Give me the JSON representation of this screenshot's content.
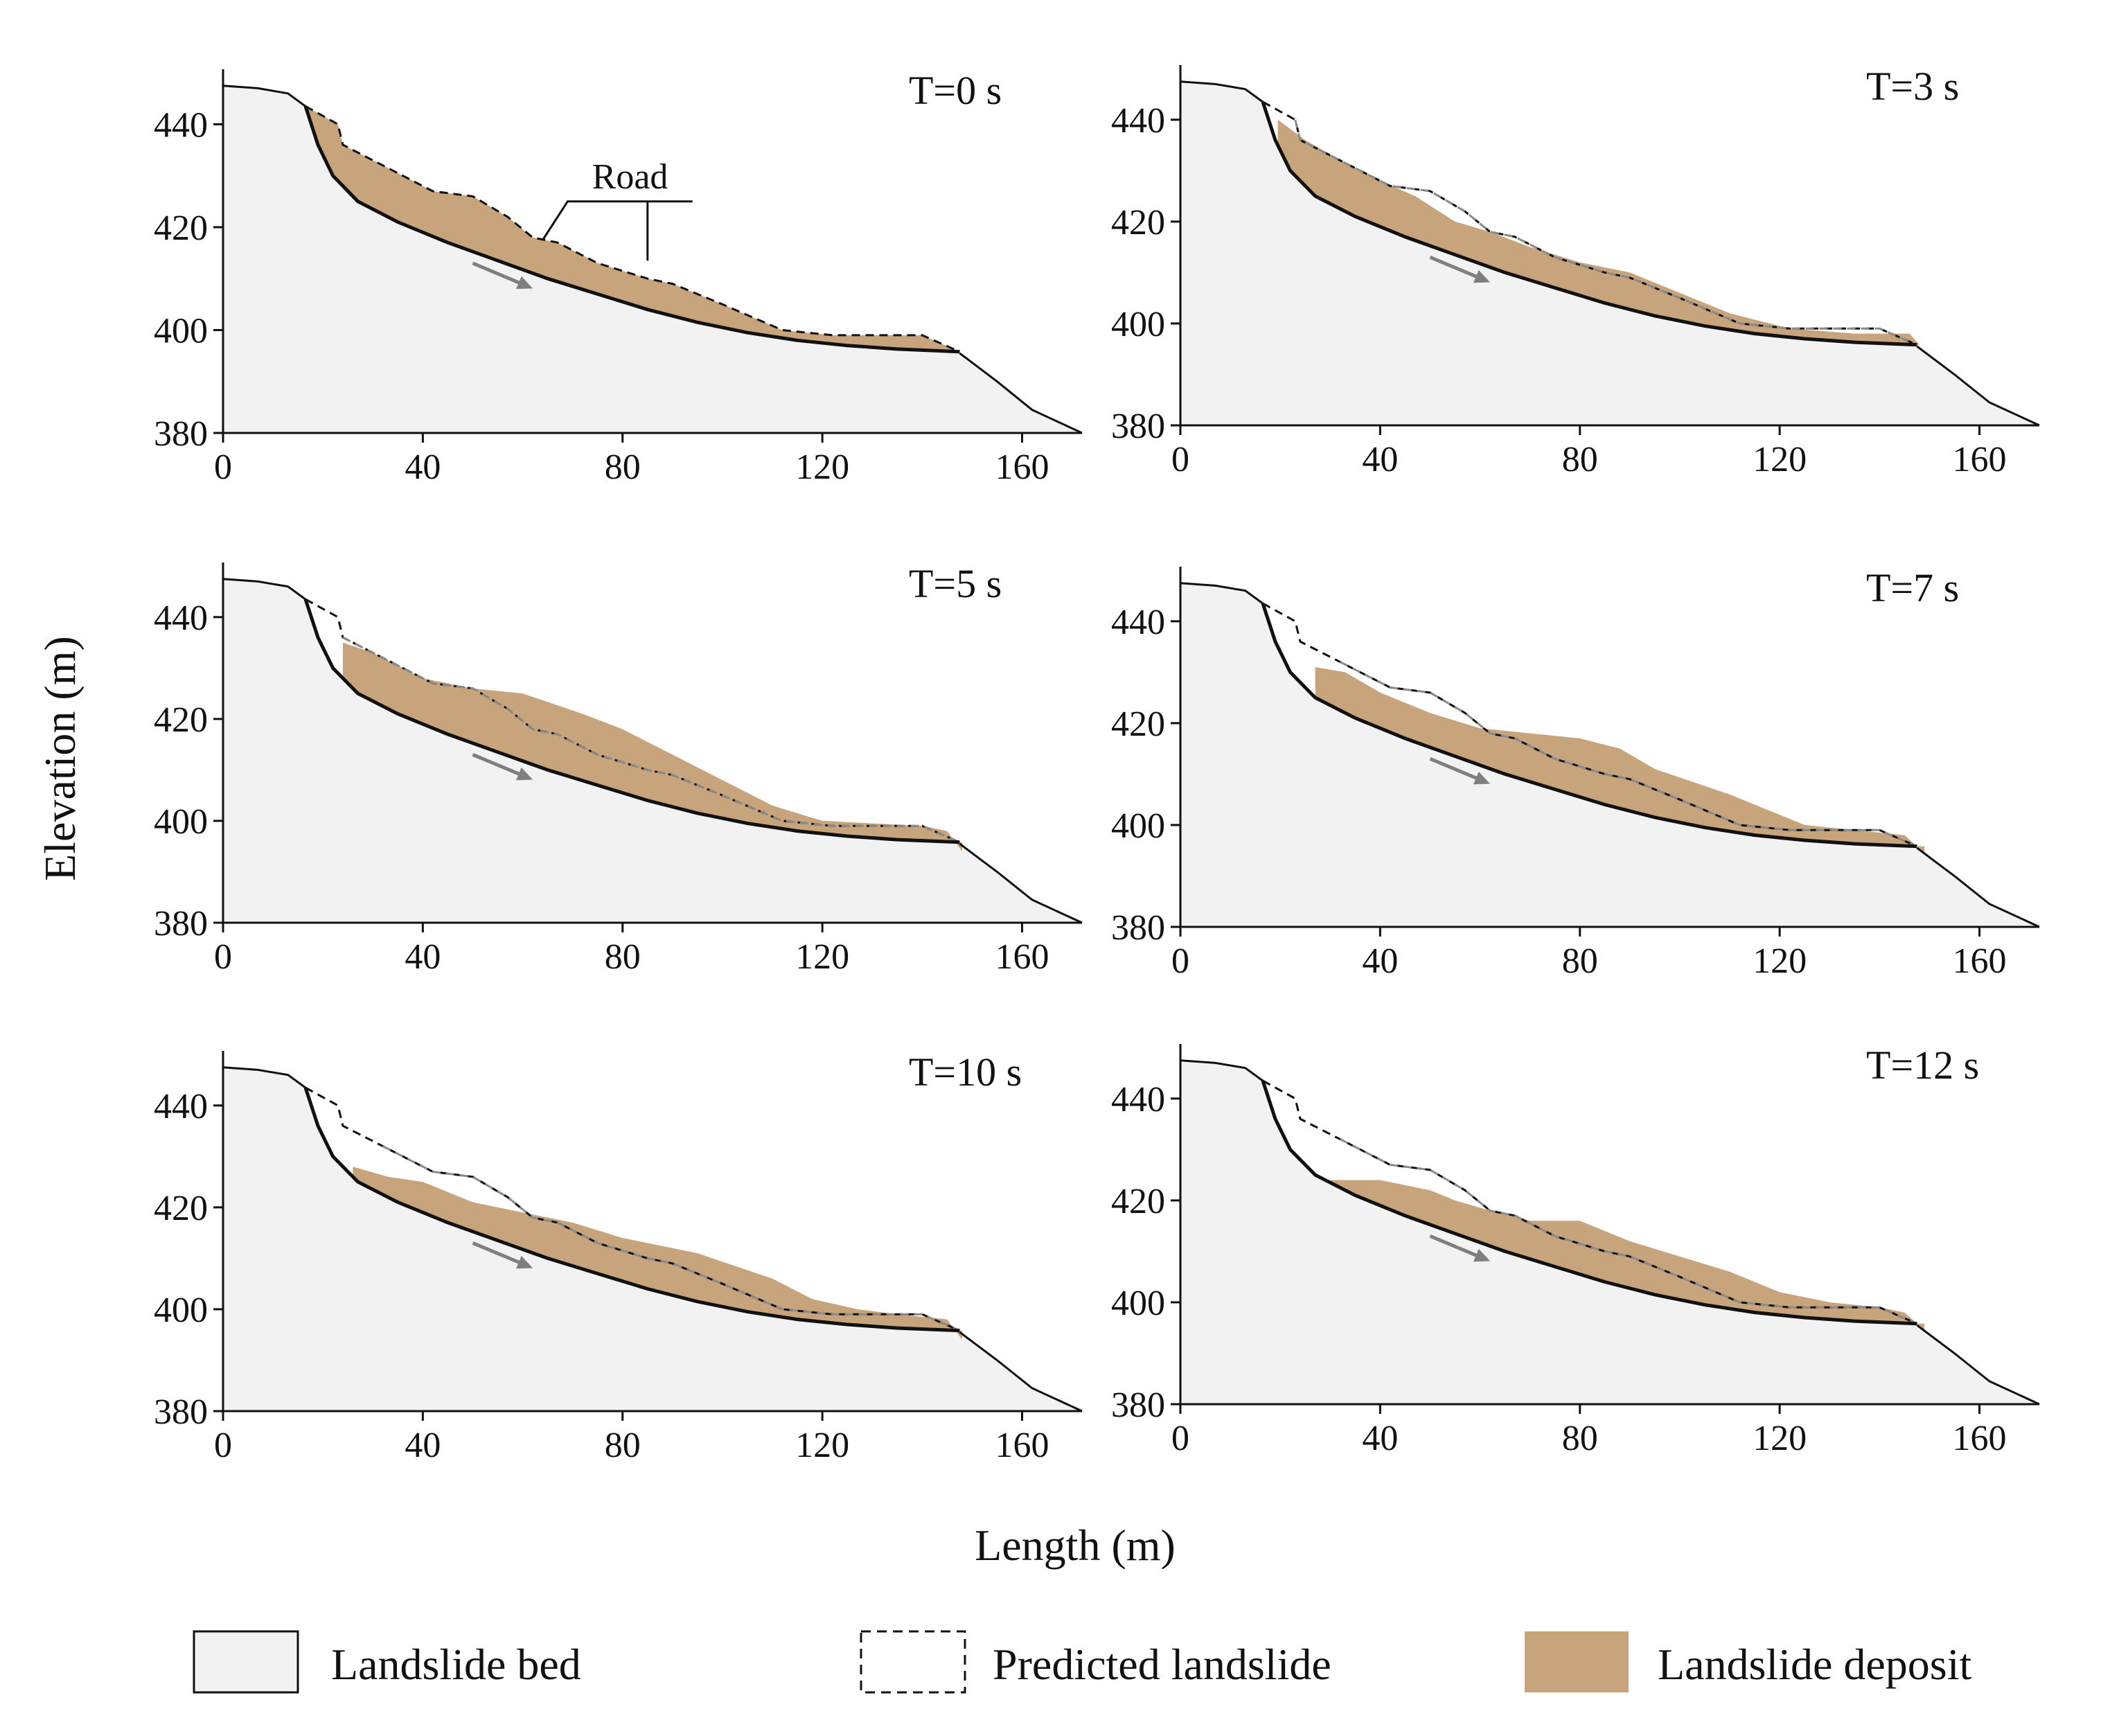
{
  "figure": {
    "ylabel": "Elevation (m)",
    "xlabel": "Length (m)",
    "road_label": "Road",
    "legend": [
      {
        "key": "bed",
        "label": "Landslide bed"
      },
      {
        "key": "predicted",
        "label": "Predicted landslide"
      },
      {
        "key": "deposit",
        "label": "Landslide deposit"
      }
    ],
    "colors": {
      "bed": "#f2f2f2",
      "deposit": "#c8a47c",
      "line": "#111111",
      "arrow": "#7f7f7f",
      "dash_inner": "#8a8a8a"
    }
  },
  "chart_data": {
    "type": "area",
    "xlim": [
      0,
      172
    ],
    "ylim": [
      380,
      448
    ],
    "xticks": [
      "0",
      "40",
      "80",
      "120",
      "160"
    ],
    "yticks": [
      "380",
      "400",
      "420",
      "440"
    ],
    "terrain_top": [
      [
        0,
        447.5
      ],
      [
        7,
        447
      ],
      [
        13,
        446
      ],
      [
        16.5,
        443.5
      ]
    ],
    "terrain_toe": [
      [
        147.5,
        395.5
      ],
      [
        155,
        390
      ],
      [
        162,
        384.5
      ],
      [
        172,
        380
      ]
    ],
    "sliding_surface": [
      [
        16.5,
        443.5
      ],
      [
        19,
        436
      ],
      [
        22,
        430
      ],
      [
        27,
        425
      ],
      [
        35,
        421
      ],
      [
        45,
        417
      ],
      [
        55,
        413.5
      ],
      [
        65,
        410
      ],
      [
        75,
        407
      ],
      [
        85,
        404
      ],
      [
        95,
        401.5
      ],
      [
        105,
        399.5
      ],
      [
        115,
        398
      ],
      [
        125,
        397
      ],
      [
        135,
        396.3
      ],
      [
        147.5,
        395.8
      ]
    ],
    "predicted_surface": [
      [
        16.5,
        443.5
      ],
      [
        23,
        440
      ],
      [
        24,
        436
      ],
      [
        32,
        432
      ],
      [
        42,
        427
      ],
      [
        50,
        426
      ],
      [
        57,
        422
      ],
      [
        62,
        418
      ],
      [
        67,
        417
      ],
      [
        75,
        413
      ],
      [
        85,
        410
      ],
      [
        90,
        409
      ],
      [
        100,
        405
      ],
      [
        112,
        400
      ],
      [
        122,
        399
      ],
      [
        140,
        399
      ],
      [
        147.5,
        395.8
      ]
    ],
    "panels": [
      {
        "label": "T=0 s",
        "road": true,
        "deposit": [
          [
            16.5,
            443.5
          ],
          [
            23,
            440
          ],
          [
            24,
            436
          ],
          [
            32,
            432
          ],
          [
            42,
            427
          ],
          [
            50,
            426
          ],
          [
            57,
            422
          ],
          [
            62,
            418
          ],
          [
            67,
            417
          ],
          [
            75,
            413
          ],
          [
            85,
            410
          ],
          [
            90,
            409
          ],
          [
            100,
            405
          ],
          [
            112,
            400
          ],
          [
            122,
            399
          ],
          [
            140,
            399
          ],
          [
            147.5,
            395.8
          ]
        ]
      },
      {
        "label": "T=3 s",
        "road": false,
        "deposit": [
          [
            19.5,
            440
          ],
          [
            25,
            436
          ],
          [
            32,
            432
          ],
          [
            40,
            428
          ],
          [
            47,
            425
          ],
          [
            55,
            420
          ],
          [
            62,
            418
          ],
          [
            70,
            415
          ],
          [
            80,
            412
          ],
          [
            90,
            410
          ],
          [
            100,
            406
          ],
          [
            110,
            402
          ],
          [
            122,
            399
          ],
          [
            135,
            398
          ],
          [
            140,
            398
          ],
          [
            146,
            398
          ],
          [
            148,
            395.8
          ]
        ]
      },
      {
        "label": "T=5 s",
        "road": false,
        "deposit": [
          [
            24,
            435
          ],
          [
            30,
            433
          ],
          [
            40,
            428
          ],
          [
            50,
            426
          ],
          [
            60,
            425
          ],
          [
            72,
            421
          ],
          [
            80,
            418
          ],
          [
            90,
            413
          ],
          [
            100,
            408
          ],
          [
            110,
            403
          ],
          [
            120,
            400
          ],
          [
            130,
            399.5
          ],
          [
            140,
            399
          ],
          [
            145,
            398
          ],
          [
            148,
            394
          ]
        ]
      },
      {
        "label": "T=7 s",
        "road": false,
        "deposit": [
          [
            27,
            431
          ],
          [
            33,
            430
          ],
          [
            40,
            426
          ],
          [
            50,
            422
          ],
          [
            60,
            419
          ],
          [
            70,
            418
          ],
          [
            80,
            417
          ],
          [
            88,
            415
          ],
          [
            95,
            411
          ],
          [
            110,
            406
          ],
          [
            125,
            400
          ],
          [
            135,
            399
          ],
          [
            145,
            398
          ],
          [
            149,
            394.5
          ]
        ]
      },
      {
        "label": "T=10 s",
        "road": false,
        "deposit": [
          [
            26,
            428
          ],
          [
            33,
            426
          ],
          [
            40,
            425
          ],
          [
            50,
            421
          ],
          [
            60,
            419
          ],
          [
            70,
            417
          ],
          [
            80,
            414
          ],
          [
            95,
            411
          ],
          [
            110,
            406
          ],
          [
            118,
            402
          ],
          [
            127,
            400
          ],
          [
            135,
            399
          ],
          [
            145,
            398
          ],
          [
            148,
            394
          ]
        ]
      },
      {
        "label": "T=12 s",
        "road": false,
        "deposit": [
          [
            30,
            424
          ],
          [
            40,
            424
          ],
          [
            50,
            422
          ],
          [
            55,
            420
          ],
          [
            62,
            418
          ],
          [
            70,
            416
          ],
          [
            80,
            416
          ],
          [
            90,
            412
          ],
          [
            100,
            409
          ],
          [
            110,
            406
          ],
          [
            120,
            402
          ],
          [
            130,
            400
          ],
          [
            140,
            399
          ],
          [
            145,
            398
          ],
          [
            149,
            394.5
          ]
        ]
      }
    ]
  }
}
